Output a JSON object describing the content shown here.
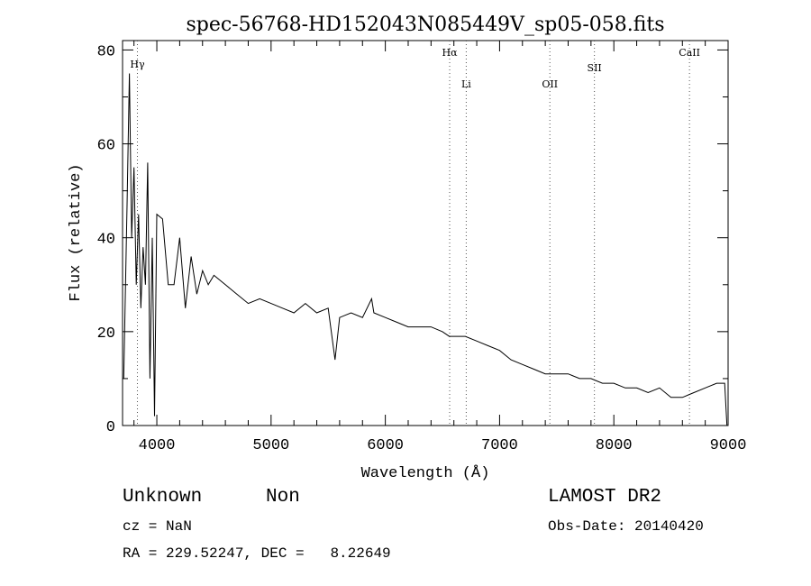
{
  "chart_data": {
    "type": "line",
    "title": "spec-56768-HD152043N085449V_sp05-058.fits",
    "xlabel": "Wavelength (Å)",
    "ylabel": "Flux (relative)",
    "xlim": [
      3700,
      9000
    ],
    "ylim": [
      0,
      82
    ],
    "x_ticks": [
      4000,
      5000,
      6000,
      7000,
      8000,
      9000
    ],
    "y_ticks": [
      0,
      20,
      40,
      60,
      80
    ],
    "grid": false,
    "series": [
      {
        "values_note": "",
        "x": [
          3710,
          3740,
          3760,
          3780,
          3800,
          3820,
          3840,
          3860,
          3880,
          3900,
          3920,
          3940,
          3960,
          3980,
          4000,
          4050,
          4100,
          4150,
          4200,
          4250,
          4300,
          4350,
          4400,
          4450,
          4500,
          4600,
          4700,
          4800,
          4900,
          5000,
          5100,
          5200,
          5300,
          5400,
          5500,
          5560,
          5600,
          5700,
          5800,
          5880,
          5900,
          6000,
          6100,
          6200,
          6300,
          6400,
          6500,
          6560,
          6600,
          6700,
          6800,
          6900,
          7000,
          7100,
          7200,
          7300,
          7400,
          7500,
          7600,
          7700,
          7800,
          7900,
          8000,
          8100,
          8200,
          8300,
          8400,
          8500,
          8600,
          8700,
          8800,
          8900,
          8970,
          8990
        ],
        "y": [
          10,
          48,
          75,
          40,
          55,
          30,
          45,
          25,
          38,
          30,
          56,
          10,
          40,
          2,
          45,
          44,
          30,
          30,
          40,
          25,
          36,
          28,
          33,
          30,
          32,
          30,
          28,
          26,
          27,
          26,
          25,
          24,
          26,
          24,
          25,
          14,
          23,
          24,
          23,
          27,
          24,
          23,
          22,
          21,
          21,
          21,
          20,
          19,
          19,
          19,
          18,
          17,
          16,
          14,
          13,
          12,
          11,
          11,
          11,
          10,
          10,
          9,
          9,
          8,
          8,
          7,
          8,
          6,
          6,
          7,
          8,
          9,
          9,
          0
        ]
      }
    ],
    "annotations": {
      "lines": [
        {
          "label": "Hγ",
          "x": 3830
        },
        {
          "label": "Hα",
          "x": 6563
        },
        {
          "label": "Li",
          "x": 6708
        },
        {
          "label": "OII",
          "x": 7440
        },
        {
          "label": "SII",
          "x": 7830
        },
        {
          "label": "CaII",
          "x": 8662
        }
      ]
    }
  },
  "info": {
    "class": "Unknown",
    "subclass": "Non",
    "survey": "LAMOST DR2",
    "cz": "cz = NaN",
    "obs_date": "Obs-Date: 20140420",
    "coords": "RA = 229.52247, DEC =   8.22649"
  }
}
